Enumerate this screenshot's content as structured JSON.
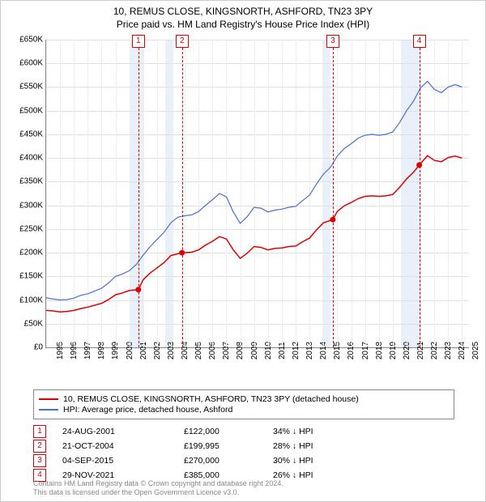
{
  "title": {
    "line1": "10, REMUS CLOSE, KINGSNORTH, ASHFORD, TN23 3PY",
    "line2": "Price paid vs. HM Land Registry's House Price Index (HPI)"
  },
  "chart": {
    "type": "line",
    "xlim": [
      1995,
      2025.5
    ],
    "ylim": [
      0,
      650000
    ],
    "ytick_step": 50000,
    "yticks": [
      "£0",
      "£50K",
      "£100K",
      "£150K",
      "£200K",
      "£250K",
      "£300K",
      "£350K",
      "£400K",
      "£450K",
      "£500K",
      "£550K",
      "£600K",
      "£650K"
    ],
    "xticks": [
      1995,
      1996,
      1997,
      1998,
      1999,
      2000,
      2001,
      2002,
      2003,
      2004,
      2005,
      2006,
      2007,
      2008,
      2009,
      2010,
      2011,
      2012,
      2013,
      2014,
      2015,
      2016,
      2017,
      2018,
      2019,
      2020,
      2021,
      2022,
      2023,
      2024,
      2025
    ],
    "grid_color": "#e0e0e0",
    "recession_shade_color": "#e8f0fa",
    "shaded_ranges": [
      [
        2001.0,
        2002.0
      ],
      [
        2003.6,
        2004.2
      ],
      [
        2014.9,
        2015.5
      ],
      [
        2020.6,
        2022.0
      ]
    ],
    "series": [
      {
        "name": "hpi",
        "color": "#4a6fd4",
        "line_width": 1.2,
        "data": [
          [
            1995.0,
            105000
          ],
          [
            1995.5,
            102000
          ],
          [
            1996.0,
            100000
          ],
          [
            1996.5,
            101000
          ],
          [
            1997.0,
            104000
          ],
          [
            1997.5,
            110000
          ],
          [
            1998.0,
            113000
          ],
          [
            1998.5,
            119000
          ],
          [
            1999.0,
            125000
          ],
          [
            1999.5,
            136000
          ],
          [
            2000.0,
            150000
          ],
          [
            2000.5,
            155000
          ],
          [
            2001.0,
            162000
          ],
          [
            2001.5,
            175000
          ],
          [
            2002.0,
            195000
          ],
          [
            2002.5,
            213000
          ],
          [
            2003.0,
            228000
          ],
          [
            2003.5,
            243000
          ],
          [
            2004.0,
            263000
          ],
          [
            2004.5,
            275000
          ],
          [
            2005.0,
            278000
          ],
          [
            2005.5,
            280000
          ],
          [
            2006.0,
            287000
          ],
          [
            2006.5,
            300000
          ],
          [
            2007.0,
            312000
          ],
          [
            2007.5,
            325000
          ],
          [
            2008.0,
            318000
          ],
          [
            2008.5,
            286000
          ],
          [
            2009.0,
            262000
          ],
          [
            2009.5,
            276000
          ],
          [
            2010.0,
            296000
          ],
          [
            2010.5,
            294000
          ],
          [
            2011.0,
            286000
          ],
          [
            2011.5,
            290000
          ],
          [
            2012.0,
            292000
          ],
          [
            2012.5,
            296000
          ],
          [
            2013.0,
            298000
          ],
          [
            2013.5,
            310000
          ],
          [
            2014.0,
            322000
          ],
          [
            2014.5,
            345000
          ],
          [
            2015.0,
            366000
          ],
          [
            2015.5,
            380000
          ],
          [
            2016.0,
            404000
          ],
          [
            2016.5,
            420000
          ],
          [
            2017.0,
            430000
          ],
          [
            2017.5,
            442000
          ],
          [
            2018.0,
            448000
          ],
          [
            2018.5,
            450000
          ],
          [
            2019.0,
            448000
          ],
          [
            2019.5,
            450000
          ],
          [
            2020.0,
            455000
          ],
          [
            2020.5,
            475000
          ],
          [
            2021.0,
            500000
          ],
          [
            2021.5,
            520000
          ],
          [
            2022.0,
            548000
          ],
          [
            2022.5,
            562000
          ],
          [
            2023.0,
            545000
          ],
          [
            2023.5,
            538000
          ],
          [
            2024.0,
            550000
          ],
          [
            2024.5,
            555000
          ],
          [
            2025.0,
            550000
          ]
        ]
      },
      {
        "name": "price_paid",
        "color": "#dd0000",
        "line_width": 1.5,
        "data": [
          [
            1995.0,
            78000
          ],
          [
            1995.5,
            77000
          ],
          [
            1996.0,
            75000
          ],
          [
            1996.5,
            76000
          ],
          [
            1997.0,
            78000
          ],
          [
            1997.5,
            82000
          ],
          [
            1998.0,
            85000
          ],
          [
            1998.5,
            89000
          ],
          [
            1999.0,
            93000
          ],
          [
            1999.5,
            101000
          ],
          [
            2000.0,
            111000
          ],
          [
            2000.5,
            115000
          ],
          [
            2001.0,
            120000
          ],
          [
            2001.65,
            122000
          ],
          [
            2002.0,
            143000
          ],
          [
            2002.5,
            157000
          ],
          [
            2003.0,
            168000
          ],
          [
            2003.5,
            179000
          ],
          [
            2004.0,
            194000
          ],
          [
            2004.8,
            199995
          ],
          [
            2005.0,
            200000
          ],
          [
            2005.5,
            201000
          ],
          [
            2006.0,
            206000
          ],
          [
            2006.5,
            216000
          ],
          [
            2007.0,
            224000
          ],
          [
            2007.5,
            234000
          ],
          [
            2008.0,
            229000
          ],
          [
            2008.5,
            206000
          ],
          [
            2009.0,
            188000
          ],
          [
            2009.5,
            199000
          ],
          [
            2010.0,
            213000
          ],
          [
            2010.5,
            211000
          ],
          [
            2011.0,
            206000
          ],
          [
            2011.5,
            209000
          ],
          [
            2012.0,
            210000
          ],
          [
            2012.5,
            213000
          ],
          [
            2013.0,
            214000
          ],
          [
            2013.5,
            223000
          ],
          [
            2014.0,
            231000
          ],
          [
            2014.5,
            248000
          ],
          [
            2015.0,
            263000
          ],
          [
            2015.68,
            270000
          ],
          [
            2016.0,
            287000
          ],
          [
            2016.5,
            299000
          ],
          [
            2017.0,
            306000
          ],
          [
            2017.5,
            314000
          ],
          [
            2018.0,
            319000
          ],
          [
            2018.5,
            320000
          ],
          [
            2019.0,
            319000
          ],
          [
            2019.5,
            320000
          ],
          [
            2020.0,
            323000
          ],
          [
            2020.5,
            338000
          ],
          [
            2021.0,
            356000
          ],
          [
            2021.5,
            370000
          ],
          [
            2021.91,
            385000
          ],
          [
            2022.5,
            405000
          ],
          [
            2023.0,
            395000
          ],
          [
            2023.5,
            392000
          ],
          [
            2024.0,
            401000
          ],
          [
            2024.5,
            404000
          ],
          [
            2025.0,
            400000
          ]
        ]
      }
    ],
    "sale_markers": [
      {
        "n": "1",
        "x": 2001.65,
        "y": 122000
      },
      {
        "n": "2",
        "x": 2004.8,
        "y": 199995
      },
      {
        "n": "3",
        "x": 2015.68,
        "y": 270000
      },
      {
        "n": "4",
        "x": 2021.91,
        "y": 385000
      }
    ]
  },
  "legend": {
    "items": [
      {
        "color": "#dd0000",
        "label": "10, REMUS CLOSE, KINGSNORTH, ASHFORD, TN23 3PY (detached house)"
      },
      {
        "color": "#4a6fd4",
        "label": "HPI: Average price, detached house, Ashford"
      }
    ]
  },
  "sales": [
    {
      "n": "1",
      "date": "24-AUG-2001",
      "price": "£122,000",
      "diff": "34% ↓ HPI"
    },
    {
      "n": "2",
      "date": "21-OCT-2004",
      "price": "£199,995",
      "diff": "28% ↓ HPI"
    },
    {
      "n": "3",
      "date": "04-SEP-2015",
      "price": "£270,000",
      "diff": "30% ↓ HPI"
    },
    {
      "n": "4",
      "date": "29-NOV-2021",
      "price": "£385,000",
      "diff": "26% ↓ HPI"
    }
  ],
  "footer": {
    "line1": "Contains HM Land Registry data © Crown copyright and database right 2024.",
    "line2": "This data is licensed under the Open Government Licence v3.0."
  }
}
